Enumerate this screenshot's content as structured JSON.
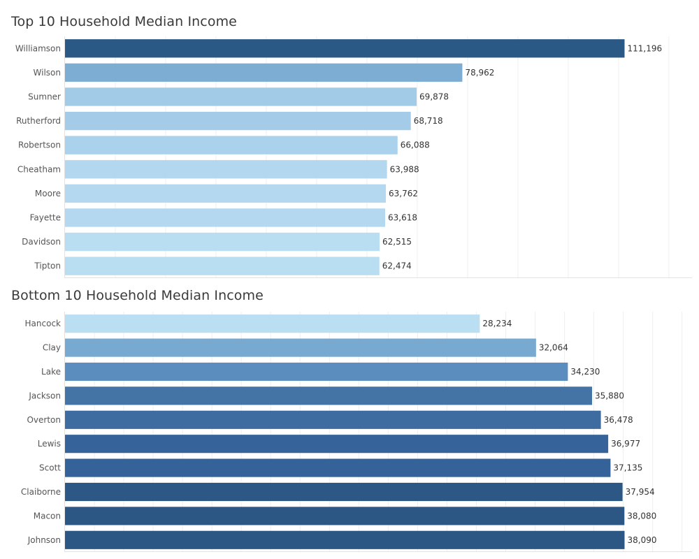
{
  "chart_data": [
    {
      "type": "bar",
      "orientation": "horizontal",
      "title": "Top 10 Household Median Income",
      "categories": [
        "Williamson",
        "Wilson",
        "Sumner",
        "Rutherford",
        "Robertson",
        "Cheatham",
        "Moore",
        "Fayette",
        "Davidson",
        "Tipton"
      ],
      "values": [
        111196,
        78962,
        69878,
        68718,
        66088,
        63988,
        63762,
        63618,
        62515,
        62474
      ],
      "value_labels": [
        "111,196",
        "78,962",
        "69,878",
        "68,718",
        "66,088",
        "63,988",
        "63,762",
        "63,618",
        "62,515",
        "62,474"
      ],
      "colors": [
        "#2b5986",
        "#7eadd4",
        "#a2cbe8",
        "#a4cce9",
        "#aad2ec",
        "#b2d7ee",
        "#b3d8ef",
        "#b3d8ef",
        "#b9ddf1",
        "#b9ddf1"
      ],
      "xlim": [
        0,
        120000
      ],
      "grid": true,
      "xlabel": "",
      "ylabel": ""
    },
    {
      "type": "bar",
      "orientation": "horizontal",
      "title": "Bottom 10 Household Median Income",
      "categories": [
        "Hancock",
        "Clay",
        "Lake",
        "Jackson",
        "Overton",
        "Lewis",
        "Scott",
        "Claiborne",
        "Macon",
        "Johnson"
      ],
      "values": [
        28234,
        32064,
        34230,
        35880,
        36478,
        36977,
        37135,
        37954,
        38080,
        38090
      ],
      "value_labels": [
        "28,234",
        "32,064",
        "34,230",
        "35,880",
        "36,478",
        "36,977",
        "37,135",
        "37,954",
        "38,080",
        "38,090"
      ],
      "colors": [
        "#badef2",
        "#78a9d1",
        "#5b8dbe",
        "#4473a5",
        "#3e6ca0",
        "#36649a",
        "#356298",
        "#2d5885",
        "#2c5784",
        "#2c5784"
      ],
      "xlim": [
        0,
        42000
      ],
      "grid": true,
      "xlabel": "",
      "ylabel": ""
    }
  ]
}
